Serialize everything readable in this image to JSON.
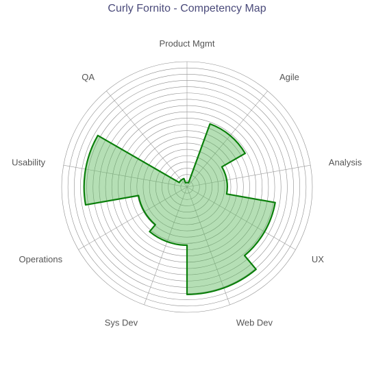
{
  "chart_data": {
    "type": "radar",
    "title": "Curly Fornito - Competency Map",
    "axes": [
      "Product Mgmt",
      "Agile",
      "Analysis",
      "UX",
      "Web Dev",
      "Sys Dev",
      "Operations",
      "Usability",
      "QA"
    ],
    "series": [
      {
        "name": "",
        "values": [
          0.5,
          7.5,
          4.5,
          10,
          12,
          6.5,
          5.5,
          11.5,
          1
        ]
      }
    ],
    "rmax": 14,
    "ring_count": 20,
    "grid": true,
    "colors": {
      "fill": "#5cb85c",
      "fill_opacity": 0.45,
      "stroke": "#0a7f0a",
      "title": "#4a4a7a",
      "label": "#555555"
    }
  }
}
